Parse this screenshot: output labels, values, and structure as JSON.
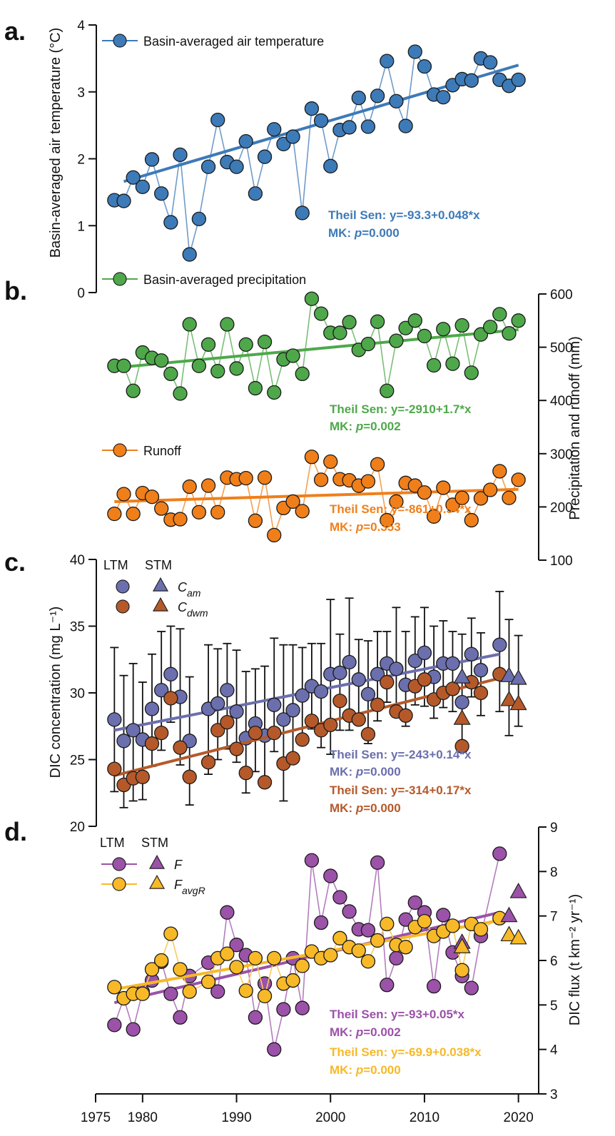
{
  "chart_data": [
    {
      "panel": "a.",
      "type": "line",
      "ylabel": "Basin-averaged air temperature (°C)",
      "ylim": [
        0,
        4
      ],
      "yticks": [
        0,
        1,
        2,
        3,
        4
      ],
      "axis_side": "left",
      "legend": [
        {
          "label": "Basin-averaged air temperature",
          "color": "#3d7ab8"
        }
      ],
      "series": [
        {
          "name": "Basin-averaged air temperature",
          "color": "#3d7ab8",
          "x": [
            1977,
            1978,
            1979,
            1980,
            1981,
            1982,
            1983,
            1984,
            1985,
            1986,
            1987,
            1988,
            1989,
            1990,
            1991,
            1992,
            1993,
            1994,
            1995,
            1996,
            1997,
            1998,
            1999,
            2000,
            2001,
            2002,
            2003,
            2004,
            2005,
            2006,
            2007,
            2008,
            2009,
            2010,
            2011,
            2012,
            2013,
            2014,
            2015,
            2016,
            2017,
            2018,
            2019,
            2020
          ],
          "values": [
            1.38,
            1.37,
            1.72,
            1.58,
            1.99,
            1.48,
            1.05,
            2.06,
            0.57,
            1.1,
            1.88,
            2.58,
            1.95,
            1.88,
            2.26,
            1.48,
            2.03,
            2.44,
            2.22,
            2.33,
            1.19,
            2.75,
            2.57,
            1.89,
            2.43,
            2.47,
            2.91,
            2.48,
            2.94,
            3.46,
            2.86,
            2.49,
            3.6,
            3.38,
            2.96,
            2.92,
            3.1,
            3.19,
            3.17,
            3.5,
            3.44,
            3.18,
            3.09,
            3.18
          ],
          "trend": {
            "x": [
              1978,
              2020
            ],
            "y": [
              1.66,
              3.4
            ]
          },
          "stats": [
            "Theil Sen: y=-93.3+0.048*x",
            "MK: p=0.000"
          ]
        }
      ]
    },
    {
      "panel": "b.",
      "type": "line",
      "ylabel": "Precipitation and runoff (mm)",
      "ylim": [
        100,
        600
      ],
      "yticks": [
        100,
        200,
        300,
        400,
        500,
        600
      ],
      "axis_side": "right",
      "legend": [
        {
          "label": "Basin-averaged precipitation",
          "color": "#4ea84a"
        },
        {
          "label": "Runoff",
          "color": "#f07f1a"
        }
      ],
      "series": [
        {
          "name": "Basin-averaged precipitation",
          "color": "#4ea84a",
          "x": [
            1977,
            1978,
            1979,
            1980,
            1981,
            1982,
            1983,
            1984,
            1985,
            1986,
            1987,
            1988,
            1989,
            1990,
            1991,
            1992,
            1993,
            1994,
            1995,
            1996,
            1997,
            1998,
            1999,
            2000,
            2001,
            2002,
            2003,
            2004,
            2005,
            2006,
            2007,
            2008,
            2009,
            2010,
            2011,
            2012,
            2013,
            2014,
            2015,
            2016,
            2017,
            2018,
            2019,
            2020
          ],
          "values": [
            465,
            465,
            418,
            490,
            480,
            475,
            450,
            413,
            543,
            465,
            505,
            455,
            543,
            460,
            505,
            423,
            510,
            415,
            477,
            484,
            450,
            591,
            563,
            527,
            527,
            547,
            495,
            506,
            548,
            418,
            512,
            536,
            550,
            521,
            466,
            534,
            469,
            541,
            452,
            524,
            538,
            562,
            526,
            550
          ],
          "trend": {
            "x": [
              1978,
              2020
            ],
            "y": [
              463,
              533
            ]
          },
          "stats": [
            "Theil Sen: y=-2910+1.7*x",
            "MK: p=0.002"
          ]
        },
        {
          "name": "Runoff",
          "color": "#f07f1a",
          "x": [
            1977,
            1978,
            1979,
            1980,
            1981,
            1982,
            1983,
            1984,
            1985,
            1986,
            1987,
            1988,
            1989,
            1990,
            1991,
            1992,
            1993,
            1994,
            1995,
            1996,
            1997,
            1998,
            1999,
            2000,
            2001,
            2002,
            2003,
            2004,
            2005,
            2006,
            2007,
            2008,
            2009,
            2010,
            2011,
            2012,
            2013,
            2014,
            2015,
            2016,
            2017,
            2018,
            2019,
            2020
          ],
          "values": [
            187,
            224,
            187,
            226,
            219,
            197,
            176,
            177,
            238,
            190,
            240,
            190,
            255,
            252,
            254,
            174,
            255,
            147,
            198,
            210,
            192,
            294,
            251,
            285,
            252,
            250,
            240,
            248,
            280,
            175,
            210,
            245,
            240,
            227,
            182,
            236,
            204,
            217,
            175,
            216,
            232,
            267,
            217,
            251
          ],
          "trend": {
            "x": [
              1977,
              2020
            ],
            "y": [
              210,
              233
            ]
          },
          "stats": [
            "Theil Sen: y=-861+0.54*x",
            "MK: p=0.353"
          ]
        }
      ]
    },
    {
      "panel": "c.",
      "type": "scatter",
      "ylabel": "DIC concentration (mg L⁻¹)",
      "ylim": [
        20,
        40
      ],
      "yticks": [
        20,
        25,
        30,
        35,
        40
      ],
      "axis_side": "left",
      "legend_header": [
        "LTM",
        "STM"
      ],
      "legend": [
        {
          "label": "C",
          "sub": "am",
          "color": "#6b6fad"
        },
        {
          "label": "C",
          "sub": "dwm",
          "color": "#b5592a"
        }
      ],
      "series": [
        {
          "name": "C_am (LTM)",
          "color": "#6b6fad",
          "marker": "circle",
          "x": [
            1977,
            1978,
            1979,
            1980,
            1981,
            1982,
            1983,
            1984,
            1985,
            1987,
            1988,
            1989,
            1990,
            1991,
            1992,
            1993,
            1994,
            1995,
            1996,
            1997,
            1998,
            1999,
            2000,
            2001,
            2002,
            2003,
            2004,
            2005,
            2006,
            2007,
            2008,
            2009,
            2010,
            2011,
            2012,
            2013,
            2014,
            2015,
            2016,
            2018
          ],
          "values": [
            28.0,
            26.4,
            27.2,
            26.5,
            28.8,
            30.2,
            31.4,
            29.7,
            26.4,
            28.8,
            29.2,
            30.2,
            28.6,
            26.6,
            27.7,
            26.8,
            29.1,
            28.0,
            28.7,
            29.8,
            30.5,
            30.1,
            31.4,
            31.5,
            32.3,
            31.0,
            29.9,
            31.4,
            32.2,
            31.8,
            30.6,
            32.4,
            33.0,
            31.2,
            32.2,
            32.2,
            29.3,
            32.9,
            31.7,
            33.6
          ],
          "err_upper": [
            33.4,
            31.3,
            32.2,
            30.8,
            32.9,
            34.6,
            35.0,
            34.8,
            31.2,
            33.6,
            33.3,
            33.7,
            33.2,
            31.6,
            31.8,
            32.0,
            34.1,
            33.6,
            33.6,
            33.4,
            33.7,
            33.7,
            37.0,
            34.4,
            37.1,
            34.0,
            33.9,
            34.6,
            34.6,
            36.4,
            34.6,
            35.7,
            36.4,
            35.0,
            35.4,
            34.6,
            34.4,
            35.6,
            34.5,
            37.6
          ],
          "err_lower": [
            22.6,
            21.4,
            21.9,
            22.0,
            24.5,
            25.7,
            27.8,
            24.6,
            21.6,
            23.9,
            25.0,
            25.8,
            24.8,
            22.5,
            24.1,
            23.5,
            25.6,
            21.9,
            24.9,
            26.3,
            27.3,
            25.9,
            25.4,
            27.2,
            27.2,
            27.8,
            26.2,
            27.9,
            29.3,
            28.2,
            27.5,
            29.1,
            29.0,
            28.1,
            28.9,
            28.6,
            25.6,
            29.7,
            28.3,
            28.6
          ],
          "trend": {
            "x": [
              1977,
              2018
            ],
            "y": [
              27.2,
              32.9
            ]
          },
          "stats": [
            "Theil Sen: y=-243+0.14*x",
            "MK: p=0.000"
          ]
        },
        {
          "name": "C_dwm (LTM)",
          "color": "#b5592a",
          "marker": "circle",
          "x": [
            1977,
            1978,
            1979,
            1980,
            1981,
            1982,
            1983,
            1984,
            1985,
            1987,
            1988,
            1989,
            1990,
            1991,
            1992,
            1993,
            1994,
            1995,
            1996,
            1997,
            1998,
            1999,
            2000,
            2001,
            2002,
            2003,
            2004,
            2005,
            2006,
            2007,
            2008,
            2009,
            2010,
            2011,
            2012,
            2013,
            2014,
            2015,
            2016,
            2018
          ],
          "values": [
            24.3,
            23.1,
            23.6,
            23.7,
            26.2,
            27.0,
            29.6,
            25.9,
            23.7,
            24.8,
            27.2,
            27.8,
            25.8,
            24.0,
            27.0,
            23.3,
            27.0,
            24.7,
            25.1,
            26.5,
            27.9,
            27.2,
            27.6,
            29.4,
            28.3,
            28.0,
            26.9,
            29.1,
            30.8,
            28.6,
            28.3,
            30.5,
            31.0,
            29.5,
            30.0,
            30.3,
            26.0,
            30.8,
            30.0,
            31.4
          ],
          "trend": {
            "x": [
              1977,
              2018
            ],
            "y": [
              23.8,
              31.1
            ]
          },
          "stats": [
            "Theil Sen: y=-314+0.17*x",
            "MK: p=0.000"
          ]
        },
        {
          "name": "C_am (STM)",
          "color": "#6b6fad",
          "marker": "triangle",
          "x": [
            2014,
            2019,
            2020
          ],
          "values": [
            31.1,
            31.2,
            31.0
          ],
          "err_upper": [
            null,
            35.5,
            34.3
          ],
          "err_lower": [
            null,
            26.8,
            27.5
          ]
        },
        {
          "name": "C_dwm (STM)",
          "color": "#b5592a",
          "marker": "triangle",
          "x": [
            2014,
            2019,
            2020
          ],
          "values": [
            28.0,
            29.4,
            29.1
          ]
        }
      ]
    },
    {
      "panel": "d.",
      "type": "line",
      "ylabel": "DIC flux (t km⁻² yr⁻¹)",
      "xlabel": "",
      "xlim": [
        1975,
        2022
      ],
      "xticks": [
        1975,
        1980,
        1990,
        2000,
        2010,
        2020
      ],
      "ylim": [
        3,
        9
      ],
      "yticks": [
        3,
        4,
        5,
        6,
        7,
        8,
        9
      ],
      "axis_side": "right",
      "legend_header": [
        "LTM",
        "STM"
      ],
      "legend": [
        {
          "label": "F",
          "sub": "",
          "color": "#9b52a8"
        },
        {
          "label": "F",
          "sub": "avgR",
          "color": "#f7b928"
        }
      ],
      "series": [
        {
          "name": "F (LTM)",
          "color": "#9b52a8",
          "marker": "circle",
          "x": [
            1977,
            1978,
            1979,
            1980,
            1981,
            1982,
            1983,
            1984,
            1985,
            1987,
            1988,
            1989,
            1990,
            1991,
            1992,
            1993,
            1994,
            1995,
            1996,
            1997,
            1998,
            1999,
            2000,
            2001,
            2002,
            2003,
            2004,
            2005,
            2006,
            2007,
            2008,
            2009,
            2010,
            2011,
            2012,
            2013,
            2014,
            2015,
            2016,
            2018
          ],
          "values": [
            4.55,
            5.15,
            4.45,
            5.3,
            5.55,
            5.97,
            5.25,
            4.72,
            5.65,
            5.95,
            5.3,
            7.08,
            6.35,
            6.12,
            4.72,
            5.48,
            4.0,
            4.9,
            6.05,
            4.93,
            8.25,
            6.85,
            7.9,
            7.42,
            7.1,
            6.7,
            6.68,
            8.2,
            5.45,
            6.05,
            6.92,
            7.3,
            7.08,
            5.42,
            7.02,
            6.18,
            5.65,
            5.38,
            6.55,
            8.4
          ],
          "trend": {
            "x": [
              1977,
              2018
            ],
            "y": [
              5.05,
              7.08
            ]
          },
          "stats": [
            "Theil Sen: y=-93+0.05*x",
            "MK: p=0.002"
          ]
        },
        {
          "name": "F_avgR (LTM)",
          "color": "#f7b928",
          "marker": "circle",
          "x": [
            1977,
            1978,
            1979,
            1980,
            1981,
            1982,
            1983,
            1984,
            1985,
            1987,
            1988,
            1989,
            1990,
            1991,
            1992,
            1993,
            1994,
            1995,
            1996,
            1997,
            1998,
            1999,
            2000,
            2001,
            2002,
            2003,
            2004,
            2005,
            2006,
            2007,
            2008,
            2009,
            2010,
            2011,
            2012,
            2013,
            2014,
            2015,
            2016,
            2018
          ],
          "values": [
            5.4,
            5.15,
            5.25,
            5.25,
            5.8,
            6.0,
            6.6,
            5.8,
            5.3,
            5.52,
            6.05,
            6.15,
            5.85,
            5.32,
            6.05,
            5.2,
            6.05,
            5.48,
            5.55,
            5.88,
            6.2,
            6.05,
            6.12,
            6.5,
            6.3,
            6.22,
            5.98,
            6.45,
            6.82,
            6.35,
            6.3,
            6.75,
            6.88,
            6.55,
            6.65,
            6.78,
            5.78,
            6.82,
            6.7,
            6.95
          ],
          "trend": {
            "x": [
              1977,
              2018
            ],
            "y": [
              5.35,
              6.9
            ]
          },
          "stats": [
            "Theil Sen: y=-69.9+0.038*x",
            "MK: p=0.000"
          ]
        },
        {
          "name": "F (STM)",
          "color": "#9b52a8",
          "marker": "triangle",
          "x": [
            2014,
            2019,
            2020
          ],
          "values": [
            6.38,
            6.98,
            7.52
          ]
        },
        {
          "name": "F_avgR (STM)",
          "color": "#f7b928",
          "marker": "triangle",
          "x": [
            2014,
            2019,
            2020
          ],
          "values": [
            6.28,
            6.55,
            6.48
          ]
        }
      ]
    }
  ]
}
